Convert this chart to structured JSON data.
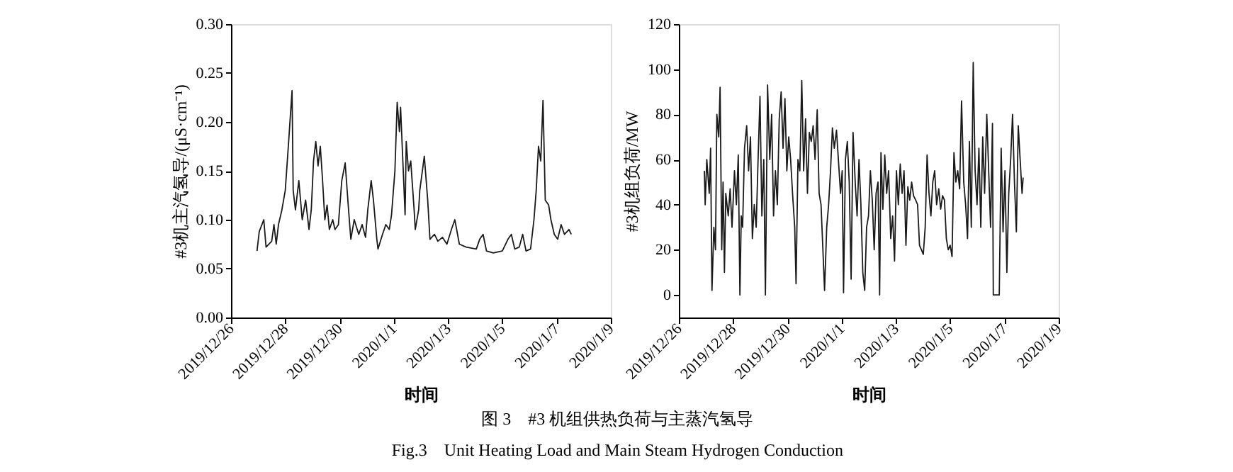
{
  "chart_data": [
    {
      "type": "line",
      "xlabel": "时间",
      "ylabel": "#3机主汽氢导/(μS·cm⁻¹)",
      "ylim": [
        0,
        0.3
      ],
      "yticks": [
        {
          "value": 0,
          "label": "0.00"
        },
        {
          "value": 0.05,
          "label": "0.05"
        },
        {
          "value": 0.1,
          "label": "0.10"
        },
        {
          "value": 0.15,
          "label": "0.15"
        },
        {
          "value": 0.2,
          "label": "0.20"
        },
        {
          "value": 0.25,
          "label": "0.25"
        },
        {
          "value": 0.3,
          "label": "0.30"
        }
      ],
      "xlim": [
        "2019-12-26",
        "2020-01-09"
      ],
      "xticks": [
        {
          "value": "2019-12-26",
          "label": "2019/12/26"
        },
        {
          "value": "2019-12-28",
          "label": "2019/12/28"
        },
        {
          "value": "2019-12-30",
          "label": "2019/12/30"
        },
        {
          "value": "2020-01-01",
          "label": "2020/1/1"
        },
        {
          "value": "2020-01-03",
          "label": "2020/1/3"
        },
        {
          "value": "2020-01-05",
          "label": "2020/1/5"
        },
        {
          "value": "2020-01-07",
          "label": "2020/1/7"
        },
        {
          "value": "2020-01-09",
          "label": "2020/1/9"
        }
      ],
      "grid": false,
      "marker": "none",
      "line_style": "solid",
      "annotations": [
        "图 3　#3 机组供热负荷与主蒸汽氢导",
        "Fig.3　Unit Heating Load and Main Steam Hydrogen Conduction"
      ],
      "series": [
        {
          "color": "#1a1a1a",
          "x": [
            "2019-12-26T23:00",
            "2019-12-27T01:00",
            "2019-12-27T05:00",
            "2019-12-27T07:00",
            "2019-12-27T12:00",
            "2019-12-27T14:00",
            "2019-12-27T16:00",
            "2019-12-27T18:00",
            "2019-12-27T21:00",
            "2019-12-28T00:00",
            "2019-12-28T03:00",
            "2019-12-28T06:00",
            "2019-12-28T07:00",
            "2019-12-28T09:00",
            "2019-12-28T12:00",
            "2019-12-28T15:00",
            "2019-12-28T18:00",
            "2019-12-28T21:00",
            "2019-12-28T23:00",
            "2019-12-29T01:00",
            "2019-12-29T03:00",
            "2019-12-29T05:00",
            "2019-12-29T07:00",
            "2019-12-29T09:00",
            "2019-12-29T11:00",
            "2019-12-29T13:00",
            "2019-12-29T15:00",
            "2019-12-29T18:00",
            "2019-12-29T20:00",
            "2019-12-29T23:00",
            "2019-12-30T02:00",
            "2019-12-30T05:00",
            "2019-12-30T08:00",
            "2019-12-30T10:00",
            "2019-12-30T13:00",
            "2019-12-30T17:00",
            "2019-12-30T20:00",
            "2019-12-30T23:00",
            "2019-12-31T01:00",
            "2019-12-31T04:00",
            "2019-12-31T06:00",
            "2019-12-31T09:00",
            "2019-12-31T10:00",
            "2019-12-31T14:00",
            "2019-12-31T17:00",
            "2019-12-31T20:00",
            "2019-12-31T22:00",
            "2020-01-01T01:00",
            "2020-01-01T03:00",
            "2020-01-01T05:00",
            "2020-01-01T06:00",
            "2020-01-01T08:00",
            "2020-01-01T10:00",
            "2020-01-01T11:00",
            "2020-01-01T13:00",
            "2020-01-01T15:00",
            "2020-01-01T18:00",
            "2020-01-01T19:00",
            "2020-01-01T22:00",
            "2020-01-01T23:00",
            "2020-01-02T03:00",
            "2020-01-02T06:00",
            "2020-01-02T08:00",
            "2020-01-02T12:00",
            "2020-01-02T15:00",
            "2020-01-02T19:00",
            "2020-01-02T23:00",
            "2020-01-03T03:00",
            "2020-01-03T06:00",
            "2020-01-03T10:00",
            "2020-01-03T16:00",
            "2020-01-04T01:00",
            "2020-01-04T04:00",
            "2020-01-04T07:00",
            "2020-01-04T10:00",
            "2020-01-04T16:00",
            "2020-01-05T00:00",
            "2020-01-05T05:00",
            "2020-01-05T08:00",
            "2020-01-05T11:00",
            "2020-01-05T15:00",
            "2020-01-05T18:00",
            "2020-01-05T21:00",
            "2020-01-06T01:00",
            "2020-01-06T04:00",
            "2020-01-06T06:00",
            "2020-01-06T08:00",
            "2020-01-06T10:00",
            "2020-01-06T12:00",
            "2020-01-06T14:00",
            "2020-01-06T17:00",
            "2020-01-06T19:00",
            "2020-01-06T22:00",
            "2020-01-07T01:00",
            "2020-01-07T04:00",
            "2020-01-07T07:00",
            "2020-01-07T11:00",
            "2020-01-07T13:00"
          ],
          "values": [
            0.068,
            0.088,
            0.1,
            0.072,
            0.078,
            0.095,
            0.075,
            0.095,
            0.11,
            0.13,
            0.18,
            0.232,
            0.13,
            0.11,
            0.14,
            0.1,
            0.12,
            0.09,
            0.11,
            0.16,
            0.18,
            0.155,
            0.175,
            0.14,
            0.1,
            0.115,
            0.09,
            0.1,
            0.09,
            0.095,
            0.14,
            0.158,
            0.11,
            0.08,
            0.1,
            0.085,
            0.095,
            0.082,
            0.11,
            0.14,
            0.12,
            0.08,
            0.07,
            0.085,
            0.095,
            0.09,
            0.105,
            0.15,
            0.22,
            0.19,
            0.215,
            0.16,
            0.105,
            0.18,
            0.15,
            0.16,
            0.11,
            0.09,
            0.11,
            0.13,
            0.165,
            0.12,
            0.08,
            0.085,
            0.078,
            0.082,
            0.075,
            0.09,
            0.1,
            0.075,
            0.072,
            0.07,
            0.08,
            0.085,
            0.068,
            0.066,
            0.068,
            0.08,
            0.085,
            0.07,
            0.072,
            0.085,
            0.068,
            0.07,
            0.1,
            0.13,
            0.175,
            0.16,
            0.222,
            0.12,
            0.115,
            0.1,
            0.085,
            0.08,
            0.095,
            0.085,
            0.09,
            0.085
          ]
        }
      ]
    },
    {
      "type": "line",
      "xlabel": "时间",
      "ylabel": "#3机组负荷/MW",
      "ylim": [
        -10,
        120
      ],
      "yticks": [
        0,
        20,
        40,
        60,
        80,
        100,
        120
      ],
      "xlim": [
        "2019-12-26",
        "2020-01-09"
      ],
      "xticks": [
        {
          "value": "2019-12-26",
          "label": "2019/12/26"
        },
        {
          "value": "2019-12-28",
          "label": "2019/12/28"
        },
        {
          "value": "2019-12-30",
          "label": "2019/12/30"
        },
        {
          "value": "2020-01-01",
          "label": "2020/1/1"
        },
        {
          "value": "2020-01-03",
          "label": "2020/1/3"
        },
        {
          "value": "2020-01-05",
          "label": "2020/1/5"
        },
        {
          "value": "2020-01-07",
          "label": "2020/1/7"
        },
        {
          "value": "2020-01-09",
          "label": "2020/1/9"
        }
      ],
      "grid": false,
      "marker": "none",
      "line_style": "solid",
      "series": [
        {
          "color": "#1a1a1a",
          "x": [
            "2019-12-26T22:34",
            "2019-12-26T23:17",
            "2019-12-27T00:43",
            "2019-12-27T02:53",
            "2019-12-27T04:05",
            "2019-12-27T05:17",
            "2019-12-27T06:58",
            "2019-12-27T08:24",
            "2019-12-27T09:36",
            "2019-12-27T11:17",
            "2019-12-27T12:29",
            "2019-12-27T13:55",
            "2019-12-27T15:07",
            "2019-12-27T16:19",
            "2019-12-27T17:31",
            "2019-12-27T19:41",
            "2019-12-27T21:22",
            "2019-12-27T23:02",
            "2019-12-28T01:12",
            "2019-12-28T02:53",
            "2019-12-28T04:34",
            "2019-12-28T06:00",
            "2019-12-28T07:12",
            "2019-12-28T08:24",
            "2019-12-28T10:05",
            "2019-12-28T12:00",
            "2019-12-28T13:41",
            "2019-12-28T15:22",
            "2019-12-28T17:02",
            "2019-12-28T18:43",
            "2019-12-28T20:24",
            "2019-12-28T22:05",
            "2019-12-28T23:46",
            "2019-12-29T01:26",
            "2019-12-29T03:07",
            "2019-12-29T04:34",
            "2019-12-29T06:29",
            "2019-12-29T08:24",
            "2019-12-29T10:05",
            "2019-12-29T11:46",
            "2019-12-29T13:26",
            "2019-12-29T15:07",
            "2019-12-29T16:48",
            "2019-12-29T18:29",
            "2019-12-29T20:10",
            "2019-12-29T21:50",
            "2019-12-29T23:31",
            "2019-12-30T01:12",
            "2019-12-30T02:53",
            "2019-12-30T04:34",
            "2019-12-30T06:29",
            "2019-12-30T07:41",
            "2019-12-30T09:22",
            "2019-12-30T11:02",
            "2019-12-30T12:43",
            "2019-12-30T14:24",
            "2019-12-30T16:05",
            "2019-12-30T17:46",
            "2019-12-30T19:26",
            "2019-12-30T21:07",
            "2019-12-30T22:48",
            "2019-12-31T00:29",
            "2019-12-31T02:24",
            "2019-12-31T04:05",
            "2019-12-31T05:46",
            "2019-12-31T07:26",
            "2019-12-31T08:53",
            "2019-12-31T10:48",
            "2019-12-31T12:29",
            "2019-12-31T14:10",
            "2019-12-31T15:50",
            "2019-12-31T17:31",
            "2019-12-31T19:26",
            "2019-12-31T21:07",
            "2019-12-31T23:02",
            "2020-01-01T00:29",
            "2020-01-01T01:41",
            "2020-01-01T03:22",
            "2020-01-01T05:02",
            "2020-01-01T06:43",
            "2020-01-01T08:24",
            "2020-01-01T10:05",
            "2020-01-01T12:00",
            "2020-01-01T13:41",
            "2020-01-01T15:22",
            "2020-01-01T17:02",
            "2020-01-01T18:43",
            "2020-01-01T20:24",
            "2020-01-01T22:05",
            "2020-01-01T23:46",
            "2020-01-02T01:26",
            "2020-01-02T03:07",
            "2020-01-02T04:48",
            "2020-01-02T06:29",
            "2020-01-02T08:10",
            "2020-01-02T09:36",
            "2020-01-02T10:48",
            "2020-01-02T12:29",
            "2020-01-02T14:10",
            "2020-01-02T15:50",
            "2020-01-02T17:31",
            "2020-01-02T19:26",
            "2020-01-02T21:07",
            "2020-01-02T22:48",
            "2020-01-03T00:29",
            "2020-01-03T02:10",
            "2020-01-03T03:50",
            "2020-01-03T05:31",
            "2020-01-03T07:12",
            "2020-01-03T08:53",
            "2020-01-03T10:34",
            "2020-01-03T12:14",
            "2020-01-03T13:55",
            "2020-01-03T15:36",
            "2020-01-03T17:31",
            "2020-01-03T19:12",
            "2020-01-03T20:53",
            "2020-01-03T22:34",
            "2020-01-04T00:14",
            "2020-01-04T01:55",
            "2020-01-04T03:36",
            "2020-01-04T05:17",
            "2020-01-04T06:58",
            "2020-01-04T08:38",
            "2020-01-04T10:19",
            "2020-01-04T12:00",
            "2020-01-04T13:55",
            "2020-01-04T15:36",
            "2020-01-04T17:17",
            "2020-01-04T18:58",
            "2020-01-04T20:38",
            "2020-01-04T22:19",
            "2020-01-05T00:00",
            "2020-01-05T01:41",
            "2020-01-05T03:22",
            "2020-01-05T05:02",
            "2020-01-05T06:43",
            "2020-01-05T08:24",
            "2020-01-05T10:05",
            "2020-01-05T12:00",
            "2020-01-05T13:41",
            "2020-01-05T15:22",
            "2020-01-05T17:02",
            "2020-01-05T18:43",
            "2020-01-05T20:24",
            "2020-01-05T22:05",
            "2020-01-05T23:46",
            "2020-01-06T01:26",
            "2020-01-06T03:07",
            "2020-01-06T04:48",
            "2020-01-06T06:29",
            "2020-01-06T08:24",
            "2020-01-06T10:05",
            "2020-01-06T11:46",
            "2020-01-06T13:26",
            "2020-01-06T14:10",
            "2020-01-06T19:26",
            "2020-01-06T21:07",
            "2020-01-06T22:48",
            "2020-01-07T00:29",
            "2020-01-07T02:10",
            "2020-01-07T03:50",
            "2020-01-07T05:31",
            "2020-01-07T07:12",
            "2020-01-07T08:53",
            "2020-01-07T10:34",
            "2020-01-07T12:14",
            "2020-01-07T13:55",
            "2020-01-07T15:36",
            "2020-01-07T16:34"
          ],
          "values": [
            55,
            40,
            60,
            45,
            65,
            2,
            30,
            20,
            80,
            70,
            92,
            20,
            50,
            10,
            45,
            35,
            47,
            30,
            55,
            40,
            62,
            0,
            35,
            30,
            65,
            75,
            55,
            70,
            25,
            40,
            30,
            60,
            88,
            35,
            60,
            0,
            93,
            60,
            80,
            35,
            55,
            40,
            78,
            90,
            65,
            87,
            55,
            70,
            60,
            45,
            30,
            5,
            60,
            55,
            95,
            55,
            78,
            45,
            72,
            68,
            75,
            60,
            82,
            45,
            40,
            20,
            2,
            30,
            40,
            55,
            74,
            65,
            73,
            60,
            45,
            55,
            1,
            60,
            68,
            50,
            7,
            72,
            50,
            35,
            60,
            40,
            10,
            2,
            30,
            35,
            55,
            42,
            20,
            45,
            50,
            0,
            63,
            38,
            62,
            45,
            55,
            25,
            35,
            15,
            55,
            40,
            58,
            45,
            55,
            22,
            48,
            42,
            50,
            44,
            42,
            40,
            22,
            20,
            18,
            30,
            62,
            45,
            35,
            50,
            55,
            40,
            47,
            38,
            44,
            42,
            25,
            20,
            22,
            17,
            63,
            50,
            55,
            47,
            86,
            50,
            40,
            25,
            68,
            30,
            103,
            55,
            40,
            65,
            30,
            70,
            45,
            80,
            55,
            30,
            76,
            0,
            0,
            65,
            28,
            55,
            10,
            45,
            60,
            80,
            50,
            28,
            75,
            60,
            45,
            52
          ]
        }
      ]
    }
  ]
}
